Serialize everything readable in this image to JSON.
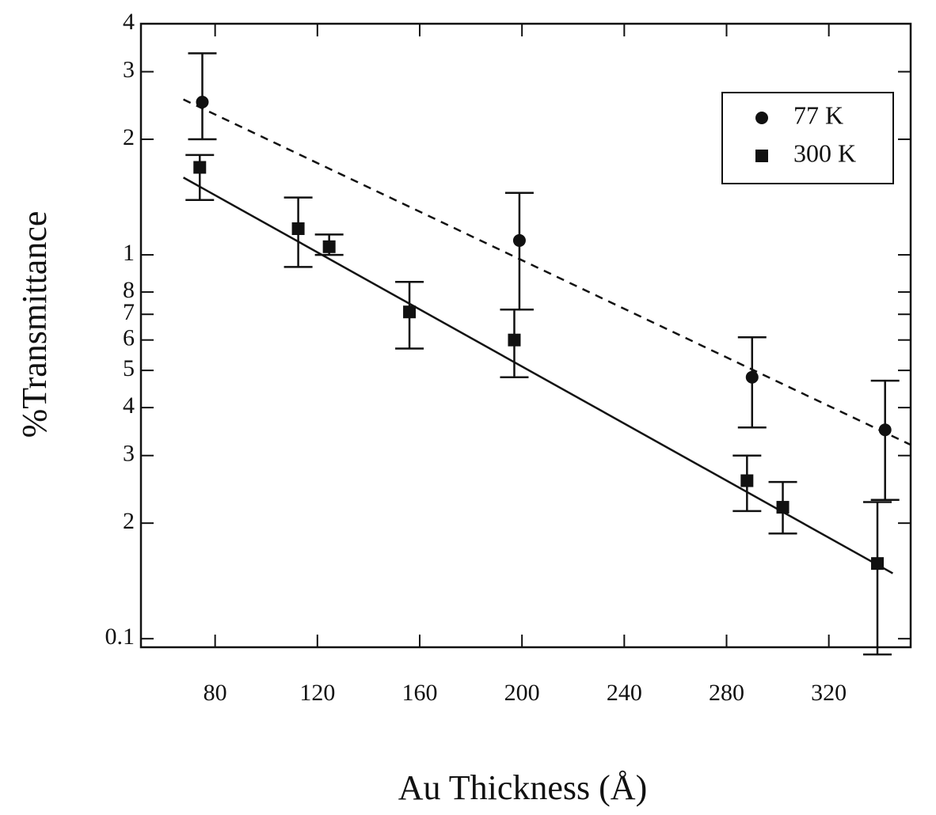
{
  "chart_data": {
    "type": "scatter",
    "x_label": "Au Thickness (Å)",
    "y_label": "%Transmittance",
    "xlim": [
      51,
      352
    ],
    "ylim": [
      0.095,
      4
    ],
    "log_y": true,
    "xticks": [
      80,
      120,
      160,
      200,
      240,
      280,
      320
    ],
    "yticks": [
      0.1,
      {
        "value": 0.2,
        "label": "2"
      },
      {
        "value": 0.3,
        "label": "3"
      },
      {
        "value": 0.4,
        "label": "4"
      },
      {
        "value": 0.5,
        "label": "5"
      },
      {
        "value": 0.6,
        "label": "6"
      },
      {
        "value": 0.7,
        "label": "7"
      },
      {
        "value": 0.8,
        "label": "8"
      },
      1,
      2,
      3,
      4
    ],
    "legend": "upper right",
    "series": [
      {
        "name": "77 K",
        "color": "#111111",
        "marker": "circle",
        "line_style": "dashed",
        "x": [
          75,
          199,
          290,
          342
        ],
        "values": [
          2.5,
          1.09,
          0.48,
          0.35
        ],
        "err_minus": [
          0.5,
          0.37,
          0.125,
          0.12
        ],
        "err_plus": [
          0.85,
          0.36,
          0.13,
          0.12
        ],
        "fit_x": [
          67.6,
          352
        ],
        "fit_y": [
          2.54,
          0.32
        ]
      },
      {
        "name": "300 K",
        "color": "#111111",
        "marker": "square",
        "line_style": "solid",
        "x": [
          74,
          112.5,
          124.6,
          156,
          197,
          288,
          302,
          339
        ],
        "values": [
          1.69,
          1.17,
          1.05,
          0.71,
          0.6,
          0.258,
          0.22,
          0.157
        ],
        "err_minus": [
          0.3,
          0.24,
          0.05,
          0.14,
          0.12,
          0.043,
          0.032,
          0.066
        ],
        "err_plus": [
          0.13,
          0.24,
          0.08,
          0.14,
          0.12,
          0.042,
          0.036,
          0.07
        ],
        "fit_x": [
          67.6,
          345
        ],
        "fit_y": [
          1.59,
          0.148
        ]
      }
    ]
  }
}
